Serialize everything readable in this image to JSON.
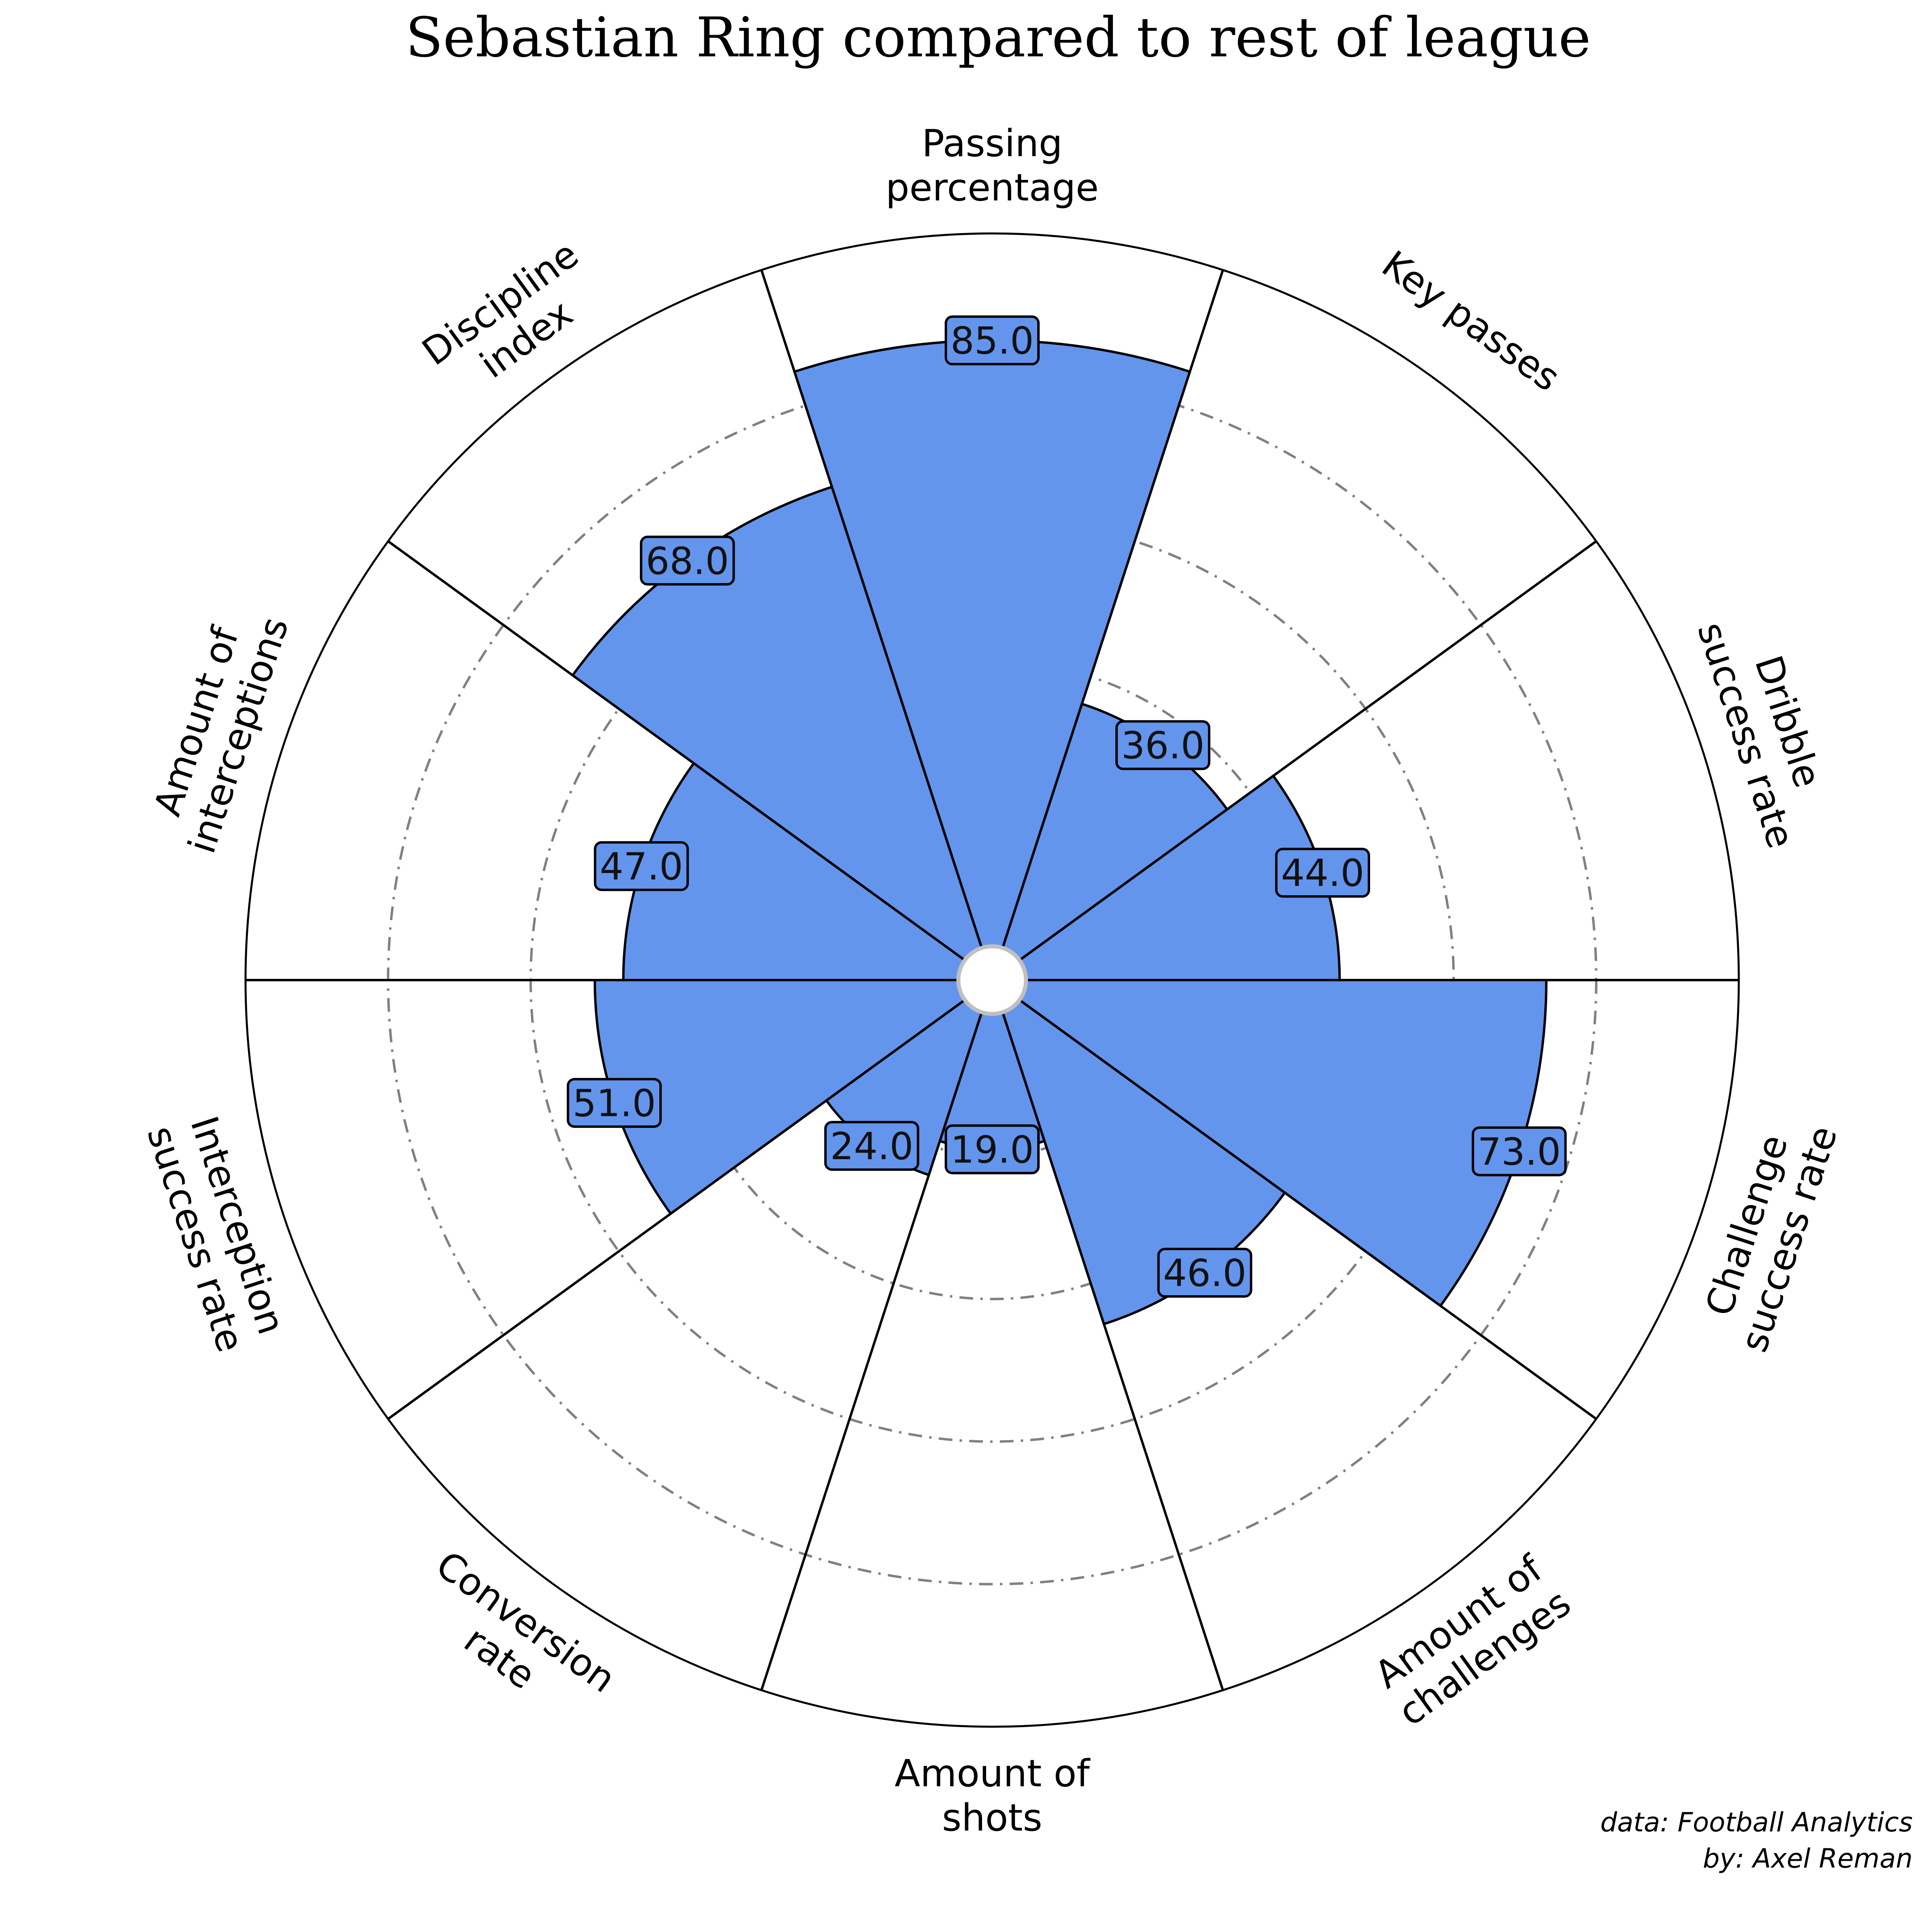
{
  "chart_data": {
    "type": "radar-pizza",
    "title": "Sebastian Ring compared to rest of league",
    "range": [
      0,
      100
    ],
    "bar_color": "#6495ED",
    "edge_color": "#000000",
    "grid_color": "#808080",
    "gridlines": [
      20,
      40,
      60,
      80
    ],
    "params": [
      {
        "label": [
          "Passing",
          "percentage"
        ],
        "value": 85.0,
        "display": "85.0"
      },
      {
        "label": [
          "Key passes"
        ],
        "value": 36.0,
        "display": "36.0"
      },
      {
        "label": [
          "Dribble",
          "success rate"
        ],
        "value": 44.0,
        "display": "44.0"
      },
      {
        "label": [
          "Challenge",
          "success rate"
        ],
        "value": 73.0,
        "display": "73.0"
      },
      {
        "label": [
          "Amount of",
          "challenges"
        ],
        "value": 46.0,
        "display": "46.0"
      },
      {
        "label": [
          "Amount of",
          "shots"
        ],
        "value": 19.0,
        "display": "19.0"
      },
      {
        "label": [
          "Conversion",
          "rate"
        ],
        "value": 24.0,
        "display": "24.0"
      },
      {
        "label": [
          "Interception",
          "success rate"
        ],
        "value": 51.0,
        "display": "51.0"
      },
      {
        "label": [
          "Amount of",
          "interceptions"
        ],
        "value": 47.0,
        "display": "47.0"
      },
      {
        "label": [
          "Discipline",
          "index"
        ],
        "value": 68.0,
        "display": "68.0"
      }
    ]
  },
  "credits": {
    "line1": "data: Football Analytics",
    "line2": "by: Axel Reman"
  }
}
